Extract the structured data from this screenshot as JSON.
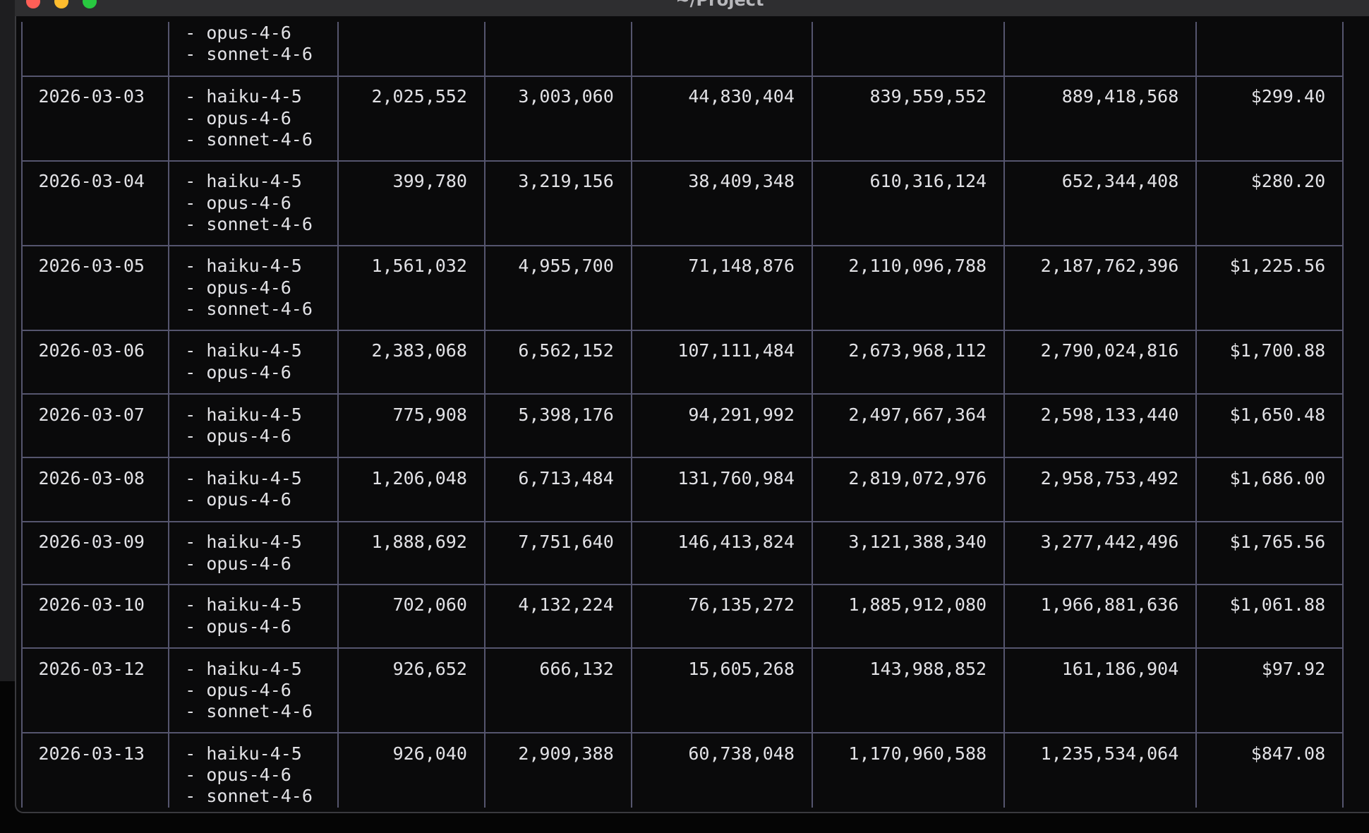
{
  "window": {
    "title": "~/Project"
  },
  "table": {
    "rows": [
      {
        "models": [
          "- opus-4-6",
          "- sonnet-4-6"
        ],
        "values": []
      },
      {
        "date": "2026-03-03",
        "models": [
          "- haiku-4-5",
          "- opus-4-6",
          "- sonnet-4-6"
        ],
        "values": [
          "2,025,552",
          "3,003,060",
          "44,830,404",
          "839,559,552",
          "889,418,568",
          "$299.40"
        ]
      },
      {
        "date": "2026-03-04",
        "models": [
          "- haiku-4-5",
          "- opus-4-6",
          "- sonnet-4-6"
        ],
        "values": [
          "399,780",
          "3,219,156",
          "38,409,348",
          "610,316,124",
          "652,344,408",
          "$280.20"
        ]
      },
      {
        "date": "2026-03-05",
        "models": [
          "- haiku-4-5",
          "- opus-4-6",
          "- sonnet-4-6"
        ],
        "values": [
          "1,561,032",
          "4,955,700",
          "71,148,876",
          "2,110,096,788",
          "2,187,762,396",
          "$1,225.56"
        ]
      },
      {
        "date": "2026-03-06",
        "models": [
          "- haiku-4-5",
          "- opus-4-6"
        ],
        "values": [
          "2,383,068",
          "6,562,152",
          "107,111,484",
          "2,673,968,112",
          "2,790,024,816",
          "$1,700.88"
        ]
      },
      {
        "date": "2026-03-07",
        "models": [
          "- haiku-4-5",
          "- opus-4-6"
        ],
        "values": [
          "775,908",
          "5,398,176",
          "94,291,992",
          "2,497,667,364",
          "2,598,133,440",
          "$1,650.48"
        ]
      },
      {
        "date": "2026-03-08",
        "models": [
          "- haiku-4-5",
          "- opus-4-6"
        ],
        "values": [
          "1,206,048",
          "6,713,484",
          "131,760,984",
          "2,819,072,976",
          "2,958,753,492",
          "$1,686.00"
        ]
      },
      {
        "date": "2026-03-09",
        "models": [
          "- haiku-4-5",
          "- opus-4-6"
        ],
        "values": [
          "1,888,692",
          "7,751,640",
          "146,413,824",
          "3,121,388,340",
          "3,277,442,496",
          "$1,765.56"
        ]
      },
      {
        "date": "2026-03-10",
        "models": [
          "- haiku-4-5",
          "- opus-4-6"
        ],
        "values": [
          "702,060",
          "4,132,224",
          "76,135,272",
          "1,885,912,080",
          "1,966,881,636",
          "$1,061.88"
        ]
      },
      {
        "date": "2026-03-12",
        "models": [
          "- haiku-4-5",
          "- opus-4-6",
          "- sonnet-4-6"
        ],
        "values": [
          "926,652",
          "666,132",
          "15,605,268",
          "143,988,852",
          "161,186,904",
          "$97.92"
        ]
      },
      {
        "date": "2026-03-13",
        "models": [
          "- haiku-4-5",
          "- opus-4-6",
          "- sonnet-4-6"
        ],
        "values": [
          "926,040",
          "2,909,388",
          "60,738,048",
          "1,170,960,588",
          "1,235,534,064",
          "$847.08"
        ]
      }
    ]
  }
}
